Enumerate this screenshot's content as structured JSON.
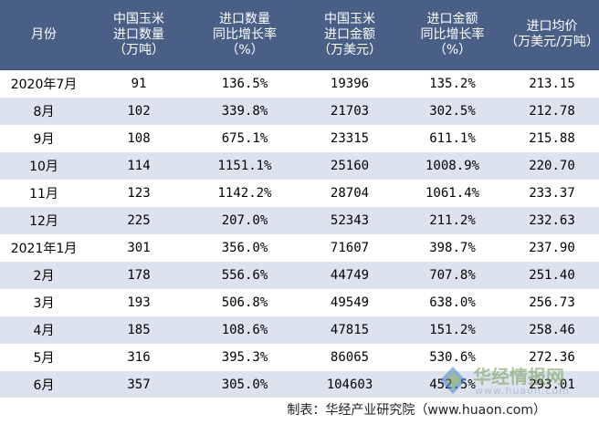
{
  "table": {
    "headers": [
      "月份",
      "中国玉米\n进口数量\n（万吨）",
      "进口数量\n同比增长率\n（%）",
      "中国玉米\n进口金额\n（万美元）",
      "进口金额\n同比增长率\n（%）",
      "进口均价\n（万美元/万吨）"
    ],
    "rows": [
      [
        "2020年7月",
        "91",
        "136.5%",
        "19396",
        "135.2%",
        "213.15"
      ],
      [
        "8月",
        "102",
        "339.8%",
        "21703",
        "302.5%",
        "212.78"
      ],
      [
        "9月",
        "108",
        "675.1%",
        "23315",
        "611.1%",
        "215.88"
      ],
      [
        "10月",
        "114",
        "1151.1%",
        "25160",
        "1008.9%",
        "220.70"
      ],
      [
        "11月",
        "123",
        "1142.2%",
        "28704",
        "1061.4%",
        "233.37"
      ],
      [
        "12月",
        "225",
        "207.0%",
        "52343",
        "211.2%",
        "232.63"
      ],
      [
        "2021年1月",
        "301",
        "356.0%",
        "71607",
        "398.7%",
        "237.90"
      ],
      [
        "2月",
        "178",
        "556.6%",
        "44749",
        "707.8%",
        "251.40"
      ],
      [
        "3月",
        "193",
        "506.8%",
        "49549",
        "638.0%",
        "256.73"
      ],
      [
        "4月",
        "185",
        "108.6%",
        "47815",
        "151.2%",
        "258.46"
      ],
      [
        "5月",
        "316",
        "395.3%",
        "86065",
        "530.6%",
        "272.36"
      ],
      [
        "6月",
        "357",
        "305.0%",
        "104603",
        "452.5%",
        "293.01"
      ]
    ]
  },
  "footer": {
    "source": "制表：华经产业研究院（www.huaon.com）"
  },
  "watermark": {
    "name": "华经情报网",
    "url": "www.huaon.com"
  },
  "colors": {
    "header_bg": "#4a5f85",
    "stripe": "#dde3ee",
    "logo_green": "#6f9a52",
    "logo_blue": "#4a82c4"
  }
}
